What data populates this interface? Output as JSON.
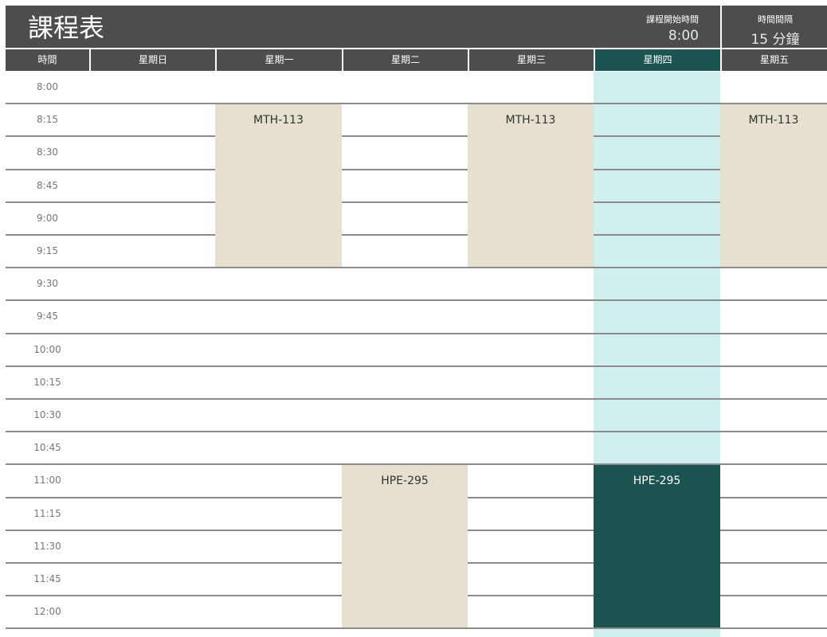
{
  "header": {
    "title": "課程表",
    "start_time_label": "課程開始時間",
    "start_time": "8:00",
    "interval_label": "時間間隔",
    "interval": "15 分鐘"
  },
  "columns": [
    "時間",
    "星期日",
    "星期一",
    "星期二",
    "星期三",
    "星期四",
    "星期五"
  ],
  "today_column": 5,
  "times": [
    "8:00",
    "8:15",
    "8:30",
    "8:45",
    "9:00",
    "9:15",
    "9:30",
    "9:45",
    "10:00",
    "10:15",
    "10:30",
    "10:45",
    "11:00",
    "11:15",
    "11:30",
    "11:45",
    "12:00"
  ],
  "events": [
    {
      "name": "MTH-113",
      "day": 2,
      "start": "8:15",
      "slots": 5,
      "highlight": false
    },
    {
      "name": "MTH-113",
      "day": 4,
      "start": "8:15",
      "slots": 5,
      "highlight": false
    },
    {
      "name": "MTH-113",
      "day": 6,
      "start": "8:15",
      "slots": 5,
      "highlight": false
    },
    {
      "name": "HPE-295",
      "day": 3,
      "start": "11:00",
      "slots": 5,
      "highlight": false
    },
    {
      "name": "HPE-295",
      "day": 5,
      "start": "11:00",
      "slots": 5,
      "highlight": true
    }
  ],
  "colors": {
    "header": "#4d4d4d",
    "accent": "#1b5450",
    "today": "#d0f0ef",
    "event": "#e5e0cf"
  }
}
